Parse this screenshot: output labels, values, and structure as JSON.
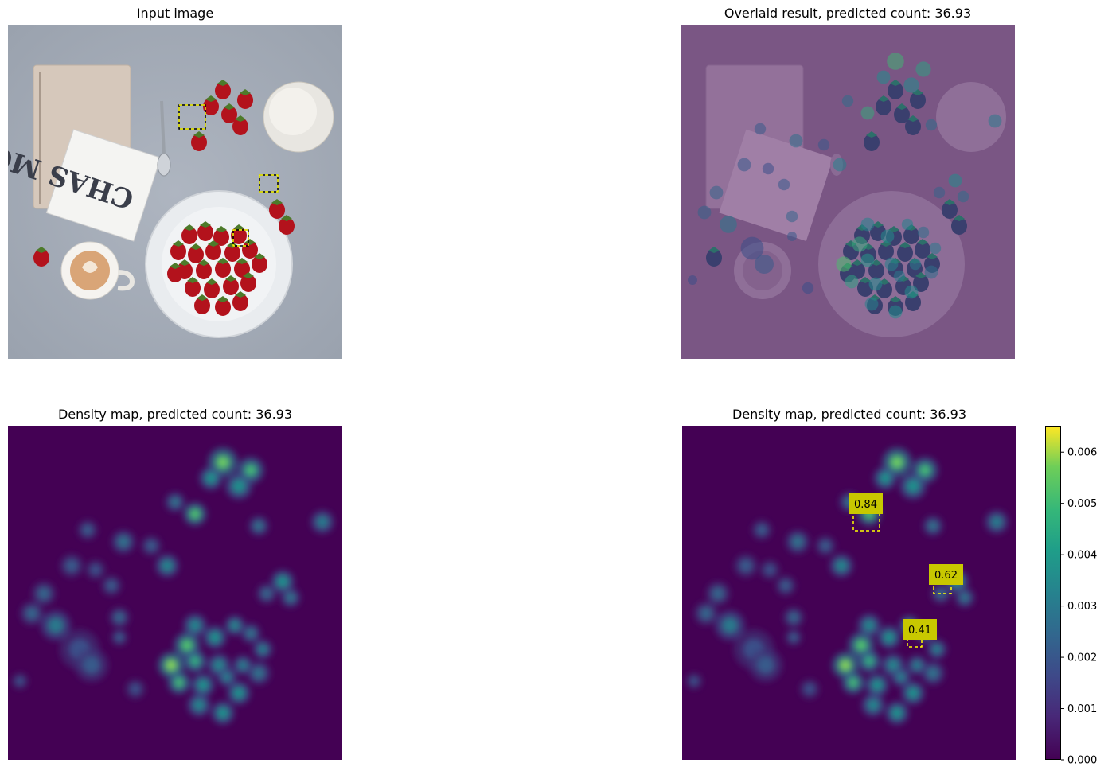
{
  "panels": {
    "input": {
      "title": "Input image"
    },
    "overlay": {
      "title": "Overlaid result, predicted count: 36.93"
    },
    "density": {
      "title": "Density map, predicted count: 36.93"
    },
    "density_annotated": {
      "title": "Density map, predicted count: 36.93"
    }
  },
  "image_text": {
    "card_text": "CHAS MOR"
  },
  "predicted_count": 36.93,
  "exemplar_scores": [
    "0.84",
    "0.62",
    "0.41"
  ],
  "colors": {
    "viridis_low": "#440154",
    "viridis_mid": "#21918c",
    "viridis_high": "#fde725",
    "box_yellow": "#ffff00",
    "label_yellow": "#c8c800"
  },
  "chart_data": {
    "type": "heatmap",
    "title": "Density map, predicted count: 36.93",
    "colormap": "viridis",
    "colorbar": {
      "range": [
        0.0,
        0.0065
      ],
      "ticks": [
        "0.000",
        "0.001",
        "0.002",
        "0.003",
        "0.004",
        "0.005",
        "0.006"
      ]
    },
    "annotations": [
      {
        "label": "0.84"
      },
      {
        "label": "0.62"
      },
      {
        "label": "0.41"
      }
    ]
  }
}
